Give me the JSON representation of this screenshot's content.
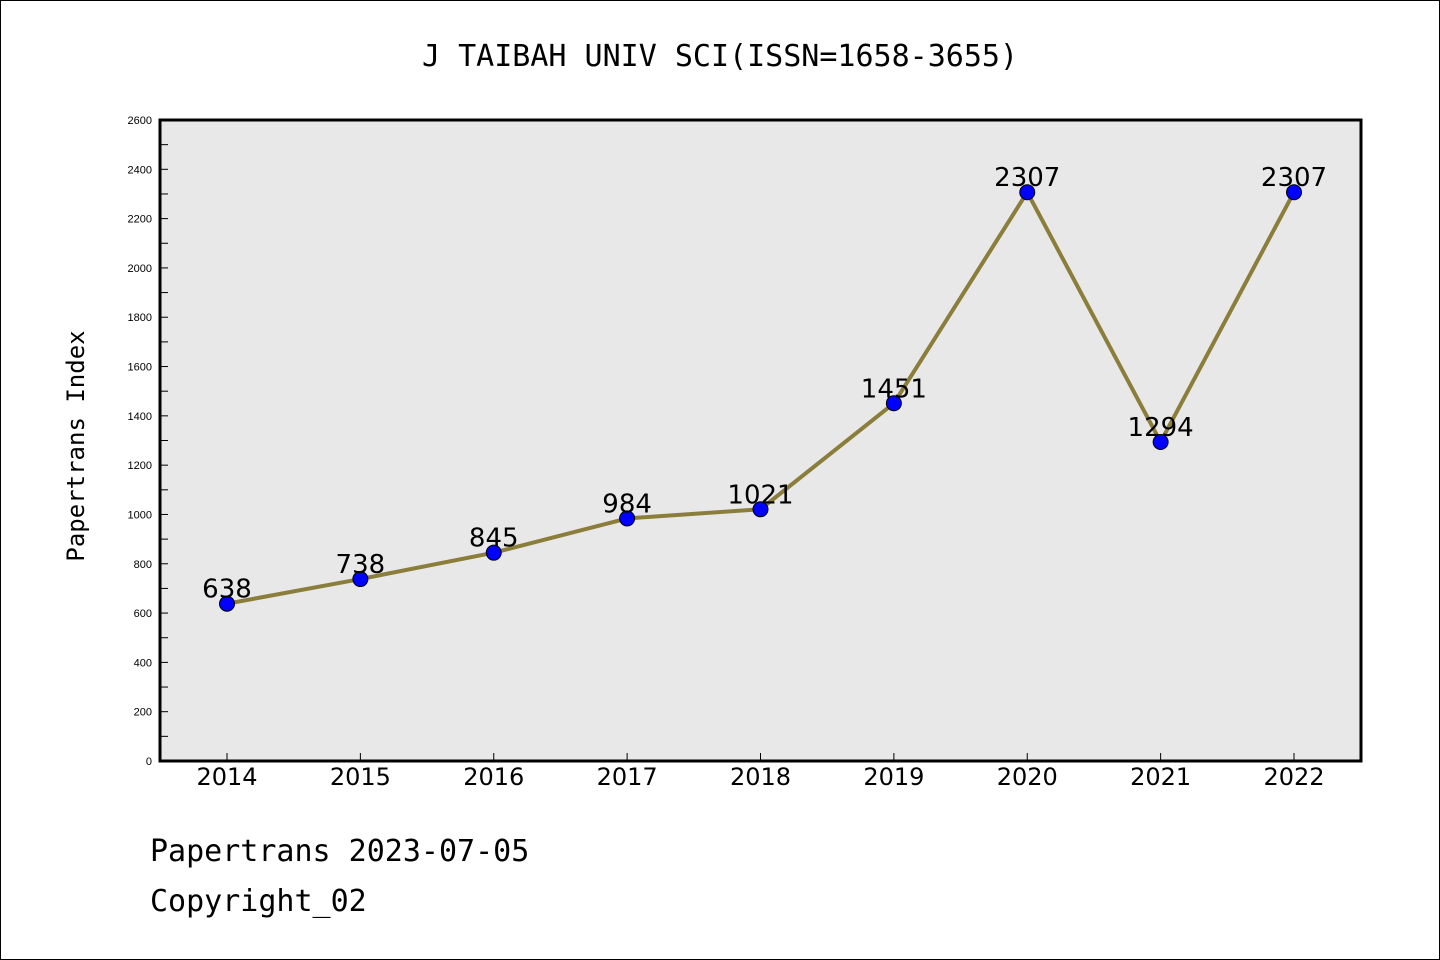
{
  "chart_data": {
    "type": "line",
    "title": "J TAIBAH UNIV SCI(ISSN=1658-3655)",
    "xlabel": "",
    "ylabel": "Papertrans Index",
    "categories": [
      "2014",
      "2015",
      "2016",
      "2017",
      "2018",
      "2019",
      "2020",
      "2021",
      "2022"
    ],
    "values": [
      638,
      738,
      845,
      984,
      1021,
      1451,
      2307,
      1294,
      2307
    ],
    "data_labels": [
      "638",
      "738",
      "845",
      "984",
      "1021",
      "1451",
      "2307",
      "1294",
      "2307"
    ],
    "ylim": [
      0,
      2600
    ],
    "yticks": [
      0,
      200,
      400,
      600,
      800,
      1000,
      1200,
      1400,
      1600,
      1800,
      2000,
      2200,
      2400,
      2600
    ],
    "ytick_labels": [
      "0",
      "200",
      "400",
      "600",
      "800",
      "1000",
      "1200",
      "1400",
      "1600",
      "1800",
      "2000",
      "2200",
      "2400",
      "2600"
    ],
    "grid": false,
    "line_color": "#8b7d3a",
    "marker_color": "#0000ff",
    "plot_background": "#e8e8e8"
  },
  "footer": {
    "line1": "Papertrans 2023-07-05",
    "line2": "Copyright_02"
  }
}
